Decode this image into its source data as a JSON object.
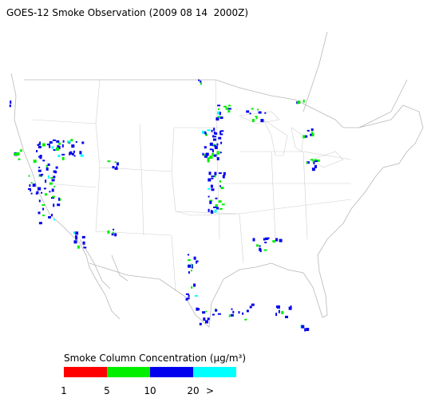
{
  "title": "GOES-12 Smoke Observation (2009 08 14  2000Z)",
  "legend": {
    "title": "Smoke Column Concentration (μg/m³)",
    "colors": [
      "#ff0000",
      "#00ee00",
      "#0000ee",
      "#00ffff"
    ],
    "labels": [
      "1",
      "5",
      "10",
      "20",
      ">"
    ]
  }
}
